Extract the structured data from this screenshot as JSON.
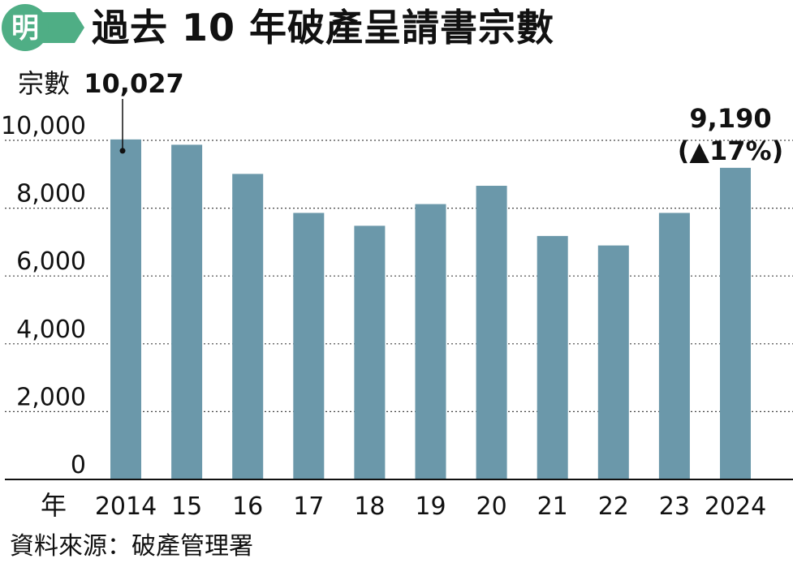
{
  "header": {
    "logo_char": "明",
    "title": "過去 10 年破產呈請書宗數"
  },
  "colors": {
    "logo_green": "#4fae85",
    "logo_green_dark": "#3a8a66",
    "bar": "#6b98aa",
    "gridline": "#444444",
    "text": "#111111"
  },
  "chart_data": {
    "type": "bar",
    "title": "過去 10 年破產呈請書宗數",
    "ylabel": "宗數",
    "xlabel": "年",
    "categories": [
      "2014",
      "15",
      "16",
      "17",
      "18",
      "19",
      "20",
      "21",
      "22",
      "23",
      "2024"
    ],
    "values": [
      10027,
      9870,
      9010,
      7860,
      7480,
      8120,
      8660,
      7180,
      6900,
      7860,
      9190
    ],
    "ylim": [
      0,
      10000
    ],
    "yticks": [
      0,
      2000,
      4000,
      6000,
      8000,
      10000
    ],
    "ytick_labels": [
      "0",
      "2,000",
      "4,000",
      "6,000",
      "8,000",
      "10,000"
    ],
    "grid": "dotted horizontal",
    "annotations": [
      {
        "category": "2014",
        "text": "10,027"
      },
      {
        "category": "2024",
        "text": "9,190",
        "subtext": "(▲17%)"
      }
    ]
  },
  "source": "資料來源：破產管理署"
}
